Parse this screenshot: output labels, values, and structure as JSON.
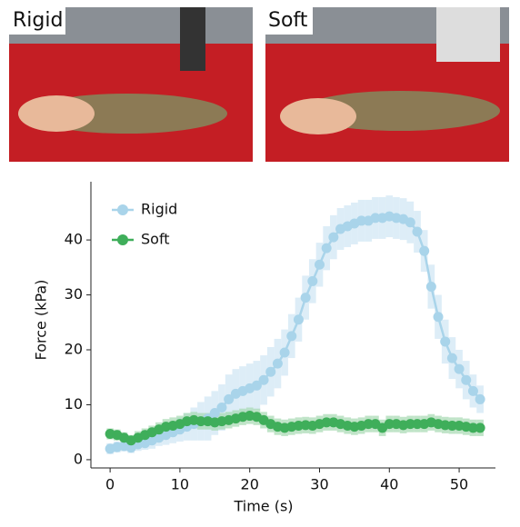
{
  "photos": [
    {
      "label": "Rigid"
    },
    {
      "label": "Soft"
    }
  ],
  "chart_data": {
    "type": "line",
    "x_label": "Time (s)",
    "y_label": "Force (kPa)",
    "x": [
      0,
      1,
      2,
      3,
      4,
      5,
      6,
      7,
      8,
      9,
      10,
      11,
      12,
      13,
      14,
      15,
      16,
      17,
      18,
      19,
      20,
      21,
      22,
      23,
      24,
      25,
      26,
      27,
      28,
      29,
      30,
      31,
      32,
      33,
      34,
      35,
      36,
      37,
      38,
      39,
      40,
      41,
      42,
      43,
      44,
      45,
      46,
      47,
      48,
      49,
      50,
      51,
      52,
      53
    ],
    "xlim": [
      -2.75,
      55.2
    ],
    "ylim": [
      -1.5,
      50.6
    ],
    "xticks": [
      0,
      10,
      20,
      30,
      40,
      50
    ],
    "yticks": [
      0,
      10,
      20,
      30,
      40
    ],
    "legend": "upper left",
    "series": [
      {
        "name": "Rigid",
        "color": "#a9d4ea",
        "band_color": "#cfe6f3",
        "values": [
          2,
          2.3,
          2.5,
          2.2,
          2.8,
          3,
          3.5,
          4,
          4.5,
          5,
          5.5,
          6,
          6.5,
          7,
          7.5,
          8.5,
          9.5,
          11,
          12,
          12.5,
          13,
          13.5,
          14.5,
          16,
          17.5,
          19.5,
          22.5,
          25.5,
          29.5,
          32.5,
          35.5,
          38.5,
          40.5,
          42,
          42.5,
          43,
          43.5,
          43.5,
          44,
          44,
          44.3,
          44,
          43.8,
          43.2,
          41.5,
          38,
          31.5,
          26,
          21.5,
          18.5,
          16.5,
          14.5,
          12.5,
          11
        ],
        "errors": [
          1,
          1,
          1,
          1,
          1.2,
          1.2,
          1.5,
          1.5,
          1.8,
          2,
          2.2,
          2.5,
          3,
          3.5,
          4,
          4,
          4.2,
          4.5,
          4.5,
          4.5,
          4.5,
          4.5,
          4.5,
          4.5,
          4.5,
          4.2,
          4,
          4,
          4,
          4,
          4,
          4,
          4,
          3.8,
          3.8,
          3.8,
          3.8,
          3.8,
          3.8,
          3.8,
          3.8,
          3.8,
          3.8,
          3.8,
          3.8,
          3.8,
          4,
          4,
          4,
          3.8,
          3.5,
          3.5,
          3,
          2.5
        ]
      },
      {
        "name": "Soft",
        "color": "#3fae5a",
        "band_color": "#a5d9b0",
        "values": [
          4.7,
          4.5,
          4,
          3.5,
          4,
          4.5,
          5,
          5.5,
          6,
          6.2,
          6.5,
          7,
          7.2,
          7,
          7,
          6.8,
          7,
          7.2,
          7.5,
          7.8,
          8,
          7.8,
          7.2,
          6.5,
          6,
          5.8,
          6,
          6.2,
          6.3,
          6.2,
          6.5,
          6.8,
          6.8,
          6.5,
          6.2,
          6,
          6.2,
          6.5,
          6.5,
          5.8,
          6.5,
          6.5,
          6.3,
          6.5,
          6.5,
          6.5,
          6.8,
          6.5,
          6.3,
          6.2,
          6.2,
          6,
          5.8,
          5.8
        ],
        "errors": [
          1,
          1,
          1,
          1,
          1.2,
          1.2,
          1.2,
          1.3,
          1.4,
          1.5,
          1.5,
          1.5,
          1.5,
          1.5,
          1.5,
          1.5,
          1.5,
          1.5,
          1.5,
          1.5,
          1.5,
          1.5,
          1.5,
          1.5,
          1.5,
          1.5,
          1.5,
          1.5,
          1.5,
          1.5,
          1.5,
          1.5,
          1.5,
          1.5,
          1.5,
          1.5,
          1.5,
          1.5,
          1.5,
          1.5,
          1.5,
          1.5,
          1.5,
          1.5,
          1.5,
          1.5,
          1.5,
          1.5,
          1.5,
          1.5,
          1.5,
          1.5,
          1.5,
          1.5
        ]
      }
    ]
  }
}
